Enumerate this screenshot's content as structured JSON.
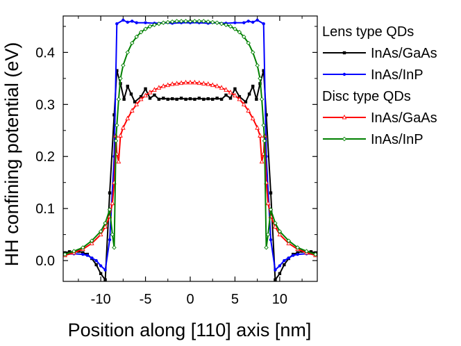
{
  "chart_data": {
    "type": "line",
    "title": "",
    "xlabel": "Position along [110] axis [nm]",
    "ylabel": "HH confining potential (eV)",
    "xlim": [
      -14.2,
      14.2
    ],
    "ylim": [
      -0.04,
      0.47
    ],
    "xticks": [
      -10,
      -5,
      0,
      5,
      10
    ],
    "xtick_labels": [
      "-10",
      "-5",
      "0",
      "5",
      "10"
    ],
    "yticks": [
      0.0,
      0.1,
      0.2,
      0.3,
      0.4
    ],
    "ytick_labels": [
      "0.0",
      "0.1",
      "0.2",
      "0.3",
      "0.4"
    ],
    "legend": {
      "placement": "right-outside",
      "groups": [
        {
          "title": "Lens type QDs",
          "entries": [
            "InAs/GaAs",
            "InAs/InP"
          ]
        },
        {
          "title": "Disc type QDs",
          "entries": [
            "InAs/GaAs",
            "InAs/InP"
          ]
        }
      ]
    },
    "series": [
      {
        "name": "InAs/GaAs",
        "group": "Lens type QDs",
        "color": "#000000",
        "marker": "square",
        "x": [
          -14,
          -13.5,
          -13,
          -12.5,
          -12,
          -11.5,
          -11,
          -10.5,
          -10,
          -9.5,
          -9,
          -8.5,
          -8.2,
          -7.8,
          -7.4,
          -7,
          -6.6,
          -6.2,
          -5.5,
          -5,
          -4.5,
          -4,
          -3.5,
          -3,
          -2.5,
          -2,
          -1.5,
          -1,
          -0.5,
          0,
          0.5,
          1,
          1.5,
          2,
          2.5,
          3,
          3.5,
          4,
          4.5,
          5,
          5.5,
          6.2,
          6.6,
          7,
          7.4,
          7.8,
          8.2,
          8.5,
          9,
          9.5,
          10,
          10.5,
          11,
          11.5,
          12,
          12.5,
          13,
          13.5,
          14
        ],
        "y": [
          0.015,
          0.017,
          0.016,
          0.018,
          0.015,
          0.012,
          0.004,
          -0.008,
          -0.025,
          -0.037,
          0.13,
          0.28,
          0.365,
          0.34,
          0.31,
          0.335,
          0.32,
          0.305,
          0.315,
          0.33,
          0.312,
          0.318,
          0.31,
          0.312,
          0.31,
          0.311,
          0.31,
          0.312,
          0.31,
          0.311,
          0.31,
          0.312,
          0.31,
          0.311,
          0.31,
          0.312,
          0.31,
          0.318,
          0.312,
          0.33,
          0.315,
          0.305,
          0.32,
          0.335,
          0.31,
          0.34,
          0.365,
          0.28,
          0.13,
          -0.037,
          -0.025,
          -0.008,
          0.004,
          0.012,
          0.015,
          0.018,
          0.016,
          0.017,
          0.015
        ]
      },
      {
        "name": "InAs/InP",
        "group": "Lens type QDs",
        "color": "#0000ff",
        "marker": "circle",
        "x": [
          -14,
          -13,
          -12,
          -11.5,
          -11,
          -10.5,
          -10,
          -9.5,
          -9,
          -8.5,
          -8.2,
          -7.5,
          -7,
          -6.5,
          -6,
          -5,
          -4,
          -3,
          -2,
          -1,
          0,
          1,
          2,
          3,
          4,
          5,
          6,
          6.5,
          7,
          7.5,
          8.2,
          8.5,
          9,
          9.5,
          10,
          10.5,
          11,
          11.5,
          12,
          13,
          14
        ],
        "y": [
          0.012,
          0.013,
          0.012,
          0.01,
          0.005,
          0.0,
          -0.01,
          -0.018,
          0.04,
          0.2,
          0.455,
          0.462,
          0.458,
          0.46,
          0.457,
          0.457,
          0.456,
          0.457,
          0.456,
          0.457,
          0.457,
          0.457,
          0.456,
          0.457,
          0.456,
          0.457,
          0.457,
          0.46,
          0.458,
          0.462,
          0.455,
          0.2,
          0.04,
          -0.018,
          -0.01,
          0.0,
          0.005,
          0.01,
          0.012,
          0.013,
          0.012
        ]
      },
      {
        "name": "InAs/GaAs",
        "group": "Disc type QDs",
        "color": "#ff0000",
        "marker": "triangle",
        "x": [
          -14,
          -13,
          -12,
          -11,
          -10,
          -9.5,
          -9,
          -8.7,
          -8.5,
          -8.3,
          -8.2,
          -8,
          -7.8,
          -7.5,
          -7,
          -6.5,
          -6,
          -5.5,
          -5,
          -4.5,
          -4,
          -3.5,
          -3,
          -2.5,
          -2,
          -1.5,
          -1,
          -0.5,
          0,
          0.5,
          1,
          1.5,
          2,
          2.5,
          3,
          3.5,
          4,
          4.5,
          5,
          5.5,
          6,
          6.5,
          7,
          7.5,
          7.8,
          8,
          8.2,
          8.3,
          8.5,
          8.7,
          9,
          9.5,
          10,
          11,
          12,
          13,
          14
        ],
        "y": [
          0.01,
          0.015,
          0.022,
          0.033,
          0.05,
          0.065,
          0.085,
          0.11,
          0.15,
          0.24,
          0.205,
          0.19,
          0.24,
          0.255,
          0.273,
          0.288,
          0.3,
          0.31,
          0.317,
          0.323,
          0.328,
          0.332,
          0.335,
          0.337,
          0.339,
          0.34,
          0.341,
          0.342,
          0.342,
          0.342,
          0.341,
          0.34,
          0.339,
          0.337,
          0.335,
          0.332,
          0.328,
          0.323,
          0.317,
          0.31,
          0.3,
          0.288,
          0.273,
          0.255,
          0.24,
          0.19,
          0.205,
          0.24,
          0.15,
          0.11,
          0.085,
          0.065,
          0.05,
          0.033,
          0.022,
          0.015,
          0.01
        ]
      },
      {
        "name": "InAs/InP",
        "group": "Disc type QDs",
        "color": "#008000",
        "marker": "diamond",
        "x": [
          -14,
          -13,
          -12,
          -11,
          -10,
          -9.5,
          -9,
          -8.7,
          -8.5,
          -8.3,
          -8.2,
          -8,
          -7.8,
          -7.5,
          -7,
          -6.5,
          -6,
          -5.5,
          -5,
          -4.5,
          -4,
          -3.5,
          -3,
          -2.5,
          -2,
          -1.5,
          -1,
          -0.5,
          0,
          0.5,
          1,
          1.5,
          2,
          2.5,
          3,
          3.5,
          4,
          4.5,
          5,
          5.5,
          6,
          6.5,
          7,
          7.5,
          7.8,
          8,
          8.2,
          8.3,
          8.5,
          8.7,
          9,
          9.5,
          10,
          11,
          12,
          13,
          14
        ],
        "y": [
          0.012,
          0.018,
          0.025,
          0.038,
          0.056,
          0.072,
          0.098,
          0.05,
          0.025,
          0.23,
          0.26,
          0.31,
          0.35,
          0.375,
          0.4,
          0.418,
          0.43,
          0.439,
          0.445,
          0.45,
          0.453,
          0.455,
          0.457,
          0.458,
          0.459,
          0.46,
          0.46,
          0.46,
          0.46,
          0.46,
          0.46,
          0.46,
          0.459,
          0.458,
          0.457,
          0.455,
          0.453,
          0.45,
          0.445,
          0.439,
          0.43,
          0.418,
          0.4,
          0.375,
          0.35,
          0.31,
          0.26,
          0.23,
          0.025,
          0.05,
          0.098,
          0.072,
          0.056,
          0.038,
          0.025,
          0.018,
          0.012
        ]
      }
    ]
  }
}
